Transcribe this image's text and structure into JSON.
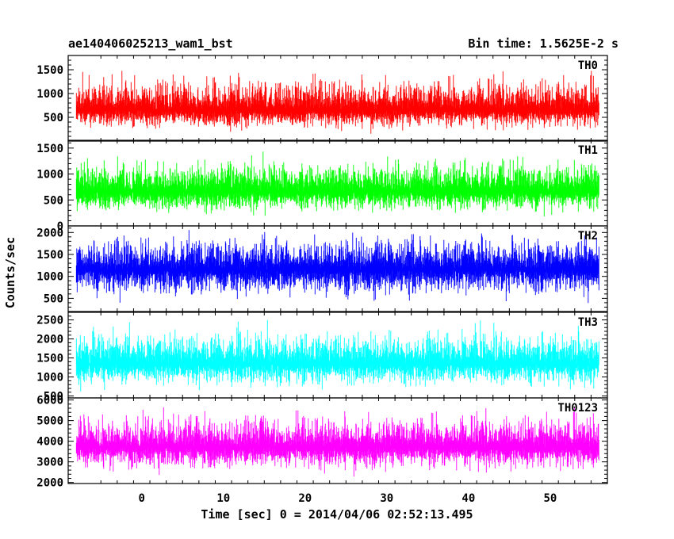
{
  "header": {
    "title": "ae140406025213_wam1_bst",
    "bin_time": "Bin time: 1.5625E-2 s"
  },
  "axes": {
    "xlabel": "Time [sec] 0 = 2014/04/06 02:52:13.495",
    "ylabel": "Counts/sec"
  },
  "chart_data": {
    "type": "line",
    "title": "ae140406025213_wam1_bst",
    "xlabel": "Time [sec] 0 = 2014/04/06 02:52:13.495",
    "ylabel": "Counts/sec",
    "xlim": [
      -9,
      57
    ],
    "x_ticks": [
      0,
      10,
      20,
      30,
      40,
      50
    ],
    "x_range_data": [
      -8,
      56
    ],
    "panels": [
      {
        "name": "TH0",
        "color": "#ff0000",
        "ylim": [
          0,
          1800
        ],
        "yticks": [
          500,
          1000,
          1500
        ],
        "mean": 650,
        "noise_min": 80,
        "noise_max": 1750
      },
      {
        "name": "TH1",
        "color": "#00ff00",
        "ylim": [
          0,
          1650
        ],
        "yticks": [
          0,
          500,
          1000,
          1500
        ],
        "mean": 660,
        "noise_min": 80,
        "noise_max": 1600
      },
      {
        "name": "TH2",
        "color": "#0000ff",
        "ylim": [
          200,
          2150
        ],
        "yticks": [
          500,
          1000,
          1500,
          2000
        ],
        "mean": 1150,
        "noise_min": 250,
        "noise_max": 2100
      },
      {
        "name": "TH3",
        "color": "#00ffff",
        "ylim": [
          450,
          2700
        ],
        "yticks": [
          500,
          1000,
          1500,
          2000,
          2500
        ],
        "mean": 1350,
        "noise_min": 500,
        "noise_max": 2650
      },
      {
        "name": "TH0123",
        "color": "#ff00ff",
        "ylim": [
          1950,
          6100
        ],
        "yticks": [
          2000,
          3000,
          4000,
          5000,
          6000
        ],
        "mean": 3700,
        "noise_min": 2050,
        "noise_max": 5950
      }
    ]
  }
}
